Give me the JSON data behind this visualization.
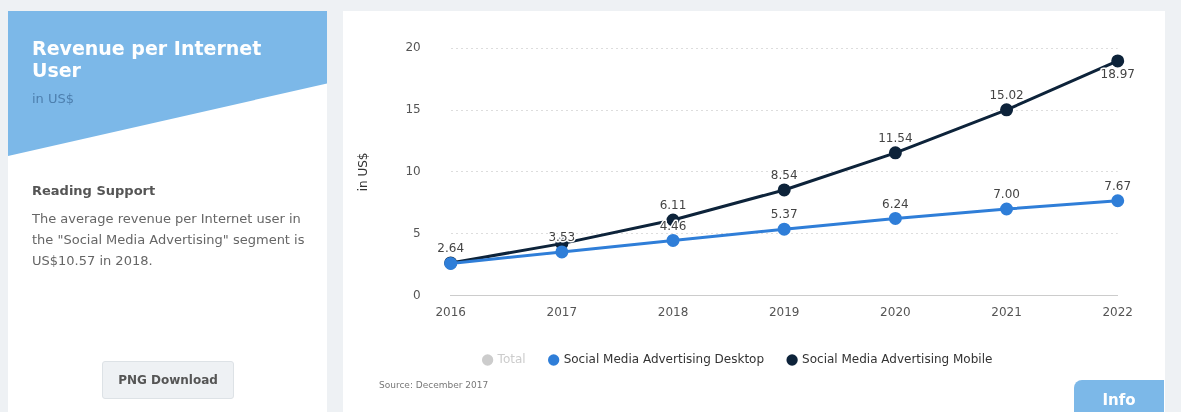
{
  "chart_data": {
    "type": "line",
    "title": "Revenue per Internet User",
    "subtitle": "in US$",
    "ylabel": "in US$",
    "categories": [
      "2016",
      "2017",
      "2018",
      "2019",
      "2020",
      "2021",
      "2022"
    ],
    "series": [
      {
        "name": "Total",
        "color": "#cccccc",
        "values": [
          null,
          null,
          null,
          null,
          null,
          null,
          null
        ]
      },
      {
        "name": "Social Media Advertising Desktop",
        "color": "#2f7ed8",
        "values": [
          2.6,
          3.53,
          4.46,
          5.37,
          6.24,
          7.0,
          7.67
        ],
        "value_labels": [
          null,
          "3.53",
          "4.46",
          "5.37",
          "6.24",
          "7.00",
          "7.67"
        ]
      },
      {
        "name": "Social Media Advertising Mobile",
        "color": "#0d233a",
        "values": [
          2.64,
          4.2,
          6.11,
          8.54,
          11.54,
          15.02,
          18.97
        ],
        "value_labels": [
          "2.64",
          null,
          "6.11",
          "8.54",
          "11.54",
          "15.02",
          "18.97"
        ]
      }
    ],
    "ylim": [
      0,
      20
    ],
    "yticks": [
      0,
      5,
      10,
      15,
      20
    ],
    "grid": "y",
    "legend": "bottom",
    "marker": "circle",
    "line_style": "solid",
    "annotations": [
      "Reading Support",
      "The average revenue per Internet user in the \"Social Media Advertising\" segment is US$10.57 in 2018.",
      "PNG Download",
      "Source: December 2017",
      "Info"
    ]
  }
}
